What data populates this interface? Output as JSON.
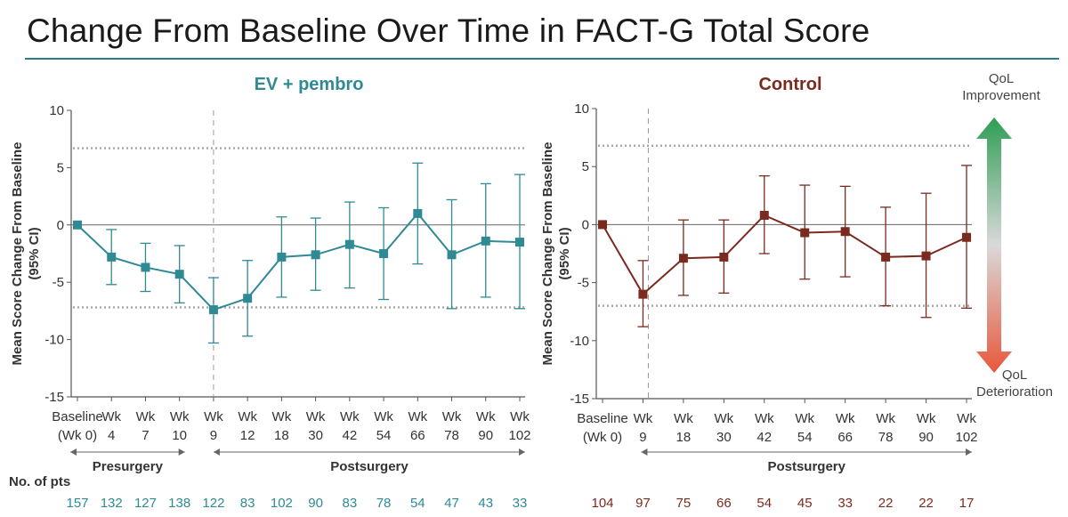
{
  "title": "Change From Baseline Over Time in FACT-G Total Score",
  "colors": {
    "ev": "#2f8a94",
    "control": "#7a2a1e",
    "rule": "#2a7d86",
    "improve": "#2e9e55",
    "deteriorate": "#e8573b"
  },
  "legend": {
    "top_label_1": "QoL",
    "top_label_2": "Improvement",
    "bottom_label_1": "QoL",
    "bottom_label_2": "Deterioration"
  },
  "n_pts_label": "No. of pts",
  "chart_data": [
    {
      "type": "line",
      "title": "EV + pembro",
      "ylabel_1": "Mean Score Change From Baseline",
      "ylabel_2": "(95% CI)",
      "ylim": [
        -15,
        10
      ],
      "yticks": [
        10,
        5,
        0,
        -5,
        -10,
        -15
      ],
      "reference_lines": [
        6.7,
        -7.2
      ],
      "categories_line1": [
        "Baseline",
        "Wk",
        "Wk",
        "Wk",
        "Wk",
        "Wk",
        "Wk",
        "Wk",
        "Wk",
        "Wk",
        "Wk",
        "Wk",
        "Wk",
        "Wk"
      ],
      "categories_line2": [
        "(Wk 0)",
        "4",
        "7",
        "10",
        "9",
        "12",
        "18",
        "30",
        "42",
        "54",
        "66",
        "78",
        "90",
        "102"
      ],
      "values": [
        0,
        -2.8,
        -3.7,
        -4.3,
        -7.4,
        -6.4,
        -2.8,
        -2.6,
        -1.7,
        -2.5,
        1.0,
        -2.6,
        -1.4,
        -1.5
      ],
      "ci_low": [
        0,
        -5.2,
        -5.8,
        -6.8,
        -10.3,
        -9.7,
        -6.3,
        -5.7,
        -5.5,
        -6.5,
        -3.4,
        -7.3,
        -6.3,
        -7.3
      ],
      "ci_high": [
        0,
        -0.4,
        -1.6,
        -1.8,
        -4.6,
        -3.1,
        0.7,
        0.6,
        2.0,
        1.5,
        5.4,
        2.2,
        3.6,
        4.4
      ],
      "divider_after_index": 3,
      "segments": [
        {
          "label": "Presurgery",
          "from": 0,
          "to": 3
        },
        {
          "label": "Postsurgery",
          "from": 4,
          "to": 13
        }
      ],
      "n_pts": [
        "157",
        "132",
        "127",
        "138",
        "122",
        "83",
        "102",
        "90",
        "83",
        "78",
        "54",
        "47",
        "43",
        "33"
      ]
    },
    {
      "type": "line",
      "title": "Control",
      "ylabel_1": "Mean Score Change From Baseline",
      "ylabel_2": "(95% CI)",
      "ylim": [
        -15,
        10
      ],
      "yticks": [
        10,
        5,
        0,
        -5,
        -10,
        -15
      ],
      "reference_lines": [
        6.8,
        -7.0
      ],
      "categories_line1": [
        "Baseline",
        "Wk",
        "Wk",
        "Wk",
        "Wk",
        "Wk",
        "Wk",
        "Wk",
        "Wk",
        "Wk"
      ],
      "categories_line2": [
        "(Wk 0)",
        "9",
        "18",
        "30",
        "42",
        "54",
        "66",
        "78",
        "90",
        "102"
      ],
      "values": [
        0,
        -6.0,
        -2.9,
        -2.8,
        0.8,
        -0.7,
        -0.6,
        -2.8,
        -2.7,
        -1.1
      ],
      "ci_low": [
        0,
        -8.8,
        -6.1,
        -5.9,
        -2.5,
        -4.7,
        -4.5,
        -7.0,
        -8.0,
        -7.2
      ],
      "ci_high": [
        0,
        -3.1,
        0.4,
        0.4,
        4.2,
        3.4,
        3.3,
        1.5,
        2.7,
        5.1
      ],
      "divider_after_index": 0,
      "segments": [
        {
          "label": "Postsurgery",
          "from": 1,
          "to": 9
        }
      ],
      "n_pts": [
        "104",
        "97",
        "75",
        "66",
        "54",
        "45",
        "33",
        "22",
        "22",
        "17"
      ]
    }
  ]
}
